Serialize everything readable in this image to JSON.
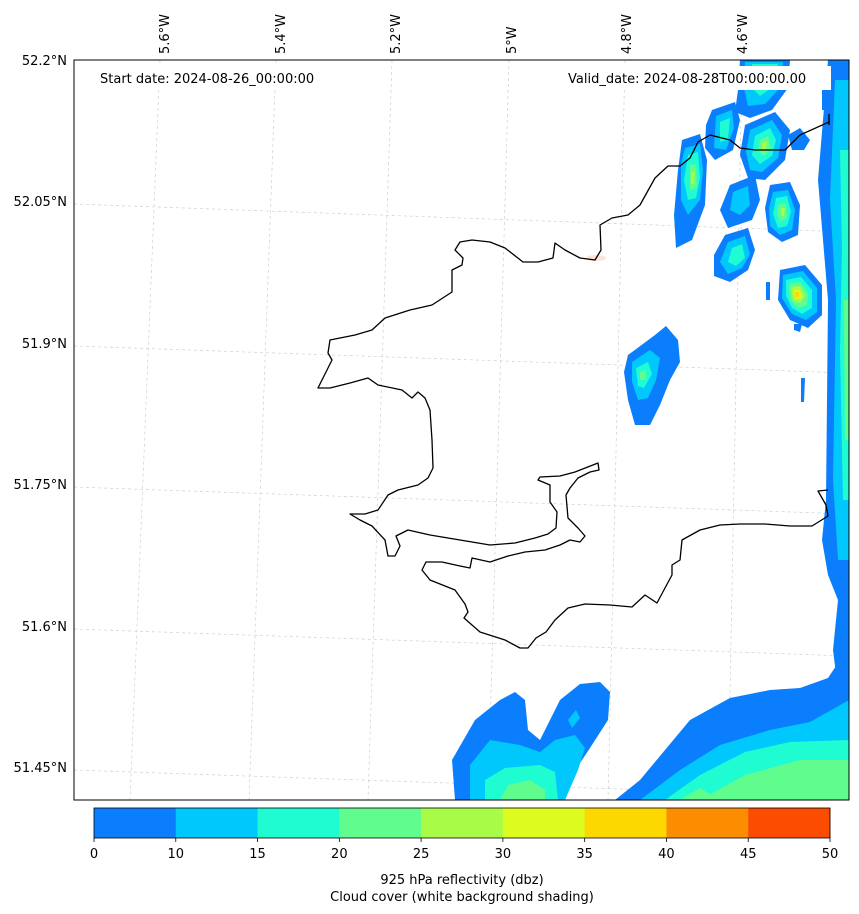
{
  "header": {
    "start_date": "Start date: 2024-08-26_00:00:00",
    "valid_date": "Valid_date: 2024-08-28T00:00:00.00"
  },
  "axes": {
    "longitude_labels": [
      "5.6°W",
      "5.4°W",
      "5.2°W",
      "5°W",
      "4.8°W",
      "4.6°W"
    ],
    "latitude_labels": [
      "52.2°N",
      "52.05°N",
      "51.9°N",
      "51.75°N",
      "51.6°N",
      "51.45°N"
    ],
    "gridlines": "dashed light gray"
  },
  "colorbar": {
    "ticks": [
      "0",
      "10",
      "15",
      "20",
      "25",
      "30",
      "35",
      "40",
      "45",
      "50"
    ],
    "label_line1": "925 hPa reflectivity (dbz)",
    "label_line2": "Cloud cover (white background shading)",
    "colors": [
      "#0a7efc",
      "#00c8fc",
      "#20fcd2",
      "#60fc8e",
      "#a8fc48",
      "#dcfc20",
      "#fcd800",
      "#fc8c00",
      "#fc4c00"
    ]
  }
}
